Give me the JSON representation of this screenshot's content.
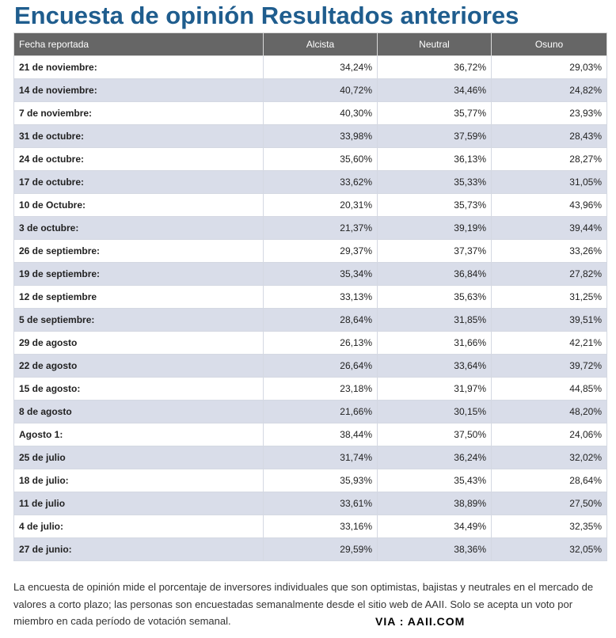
{
  "title": "Encuesta de opinión Resultados anteriores",
  "table": {
    "headers": [
      "Fecha reportada",
      "Alcista",
      "Neutral",
      "Osuno"
    ],
    "rows": [
      {
        "date": "21 de noviembre:",
        "bullish": "34,24%",
        "neutral": "36,72%",
        "bearish": "29,03%"
      },
      {
        "date": "14 de noviembre:",
        "bullish": "40,72%",
        "neutral": "34,46%",
        "bearish": "24,82%"
      },
      {
        "date": "7 de noviembre:",
        "bullish": "40,30%",
        "neutral": "35,77%",
        "bearish": "23,93%"
      },
      {
        "date": "31 de octubre:",
        "bullish": "33,98%",
        "neutral": "37,59%",
        "bearish": "28,43%"
      },
      {
        "date": "24 de octubre:",
        "bullish": "35,60%",
        "neutral": "36,13%",
        "bearish": "28,27%"
      },
      {
        "date": "17 de octubre:",
        "bullish": "33,62%",
        "neutral": "35,33%",
        "bearish": "31,05%"
      },
      {
        "date": "10 de Octubre:",
        "bullish": "20,31%",
        "neutral": "35,73%",
        "bearish": "43,96%"
      },
      {
        "date": "3 de octubre:",
        "bullish": "21,37%",
        "neutral": "39,19%",
        "bearish": "39,44%"
      },
      {
        "date": "26 de septiembre:",
        "bullish": "29,37%",
        "neutral": "37,37%",
        "bearish": "33,26%"
      },
      {
        "date": "19 de septiembre:",
        "bullish": "35,34%",
        "neutral": "36,84%",
        "bearish": "27,82%"
      },
      {
        "date": "12 de septiembre",
        "bullish": "33,13%",
        "neutral": "35,63%",
        "bearish": "31,25%"
      },
      {
        "date": "5 de septiembre:",
        "bullish": "28,64%",
        "neutral": "31,85%",
        "bearish": "39,51%"
      },
      {
        "date": "29 de agosto",
        "bullish": "26,13%",
        "neutral": "31,66%",
        "bearish": "42,21%"
      },
      {
        "date": "22 de agosto",
        "bullish": "26,64%",
        "neutral": "33,64%",
        "bearish": "39,72%"
      },
      {
        "date": "15 de agosto:",
        "bullish": "23,18%",
        "neutral": "31,97%",
        "bearish": "44,85%"
      },
      {
        "date": "8 de agosto",
        "bullish": "21,66%",
        "neutral": "30,15%",
        "bearish": "48,20%"
      },
      {
        "date": "Agosto 1:",
        "bullish": "38,44%",
        "neutral": "37,50%",
        "bearish": "24,06%"
      },
      {
        "date": "25 de julio",
        "bullish": "31,74%",
        "neutral": "36,24%",
        "bearish": "32,02%"
      },
      {
        "date": "18 de julio:",
        "bullish": "35,93%",
        "neutral": "35,43%",
        "bearish": "28,64%"
      },
      {
        "date": "11 de julio",
        "bullish": "33,61%",
        "neutral": "38,89%",
        "bearish": "27,50%"
      },
      {
        "date": "4 de julio:",
        "bullish": "33,16%",
        "neutral": "34,49%",
        "bearish": "32,35%"
      },
      {
        "date": "27 de junio:",
        "bullish": "29,59%",
        "neutral": "38,36%",
        "bearish": "32,05%"
      }
    ]
  },
  "description": "La encuesta de opinión mide el porcentaje de inversores individuales que son optimistas, bajistas y neutrales en el mercado de valores a corto plazo; las personas son encuestadas semanalmente desde el sitio web de AAII. Solo se acepta un voto por miembro en cada período de votación semanal.",
  "via": "VIA : AAII.COM",
  "colors": {
    "title": "#1f5d8e",
    "header_bg": "#666666",
    "stripe": "#d9dde9"
  }
}
